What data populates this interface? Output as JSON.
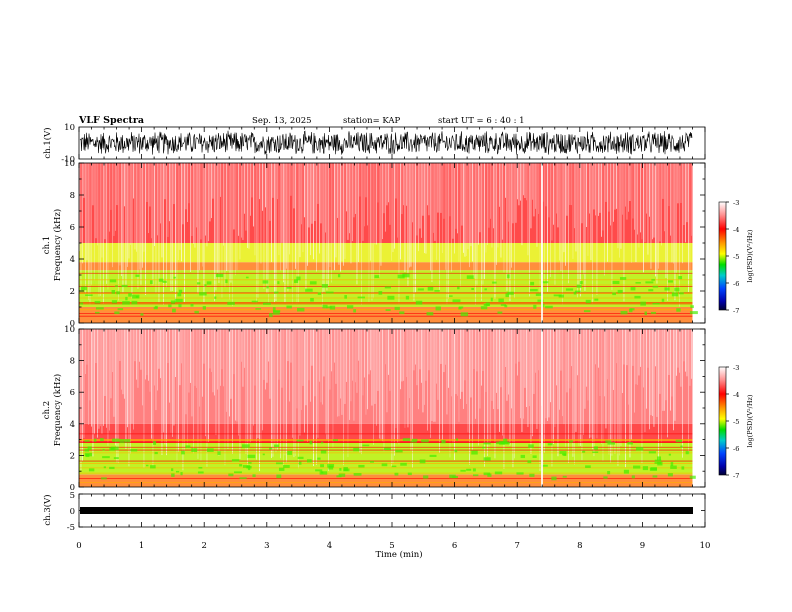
{
  "header": {
    "title": "VLF Spectra",
    "date": "Sep. 13, 2025",
    "station": "station= KAP",
    "start_ut": "start  UT =   6 : 40 : 1"
  },
  "chart_data": [
    {
      "type": "line",
      "name": "ch1-waveform",
      "ylabel": "ch.1(V)",
      "ylim": [
        -10,
        10
      ],
      "yticks": [
        "10",
        "-10"
      ],
      "xlim": [
        0,
        10
      ],
      "description_of_signal": "dense broadband waveform spanning roughly -8 to 8 V over 0 to 9.8 min"
    },
    {
      "type": "heatmap",
      "name": "ch1-spectrogram",
      "ylabel": "Frequency (kHz)",
      "channel_label": "ch.1",
      "ylim": [
        0,
        10
      ],
      "yticks": [
        "0",
        "2",
        "4",
        "6",
        "8",
        "10"
      ],
      "xlim": [
        0,
        10
      ],
      "data_end_min": 9.8,
      "colorbar": {
        "label": "log(PSD)(V²/Hz)",
        "range": [
          -7,
          -3
        ],
        "ticks": [
          "-3",
          "-4",
          "-5",
          "-6",
          "-7"
        ]
      },
      "bands": [
        {
          "from_khz": 0.0,
          "to_khz": 1.0,
          "level": "orange"
        },
        {
          "from_khz": 1.0,
          "to_khz": 3.3,
          "level": "green-yellow"
        },
        {
          "from_khz": 3.3,
          "to_khz": 3.8,
          "level": "orange"
        },
        {
          "from_khz": 3.8,
          "to_khz": 5.0,
          "level": "yellow-green"
        },
        {
          "from_khz": 5.0,
          "to_khz": 10.0,
          "level": "red"
        }
      ]
    },
    {
      "type": "heatmap",
      "name": "ch2-spectrogram",
      "ylabel": "Frequency (kHz)",
      "channel_label": "ch.2",
      "ylim": [
        0,
        10
      ],
      "yticks": [
        "0",
        "2",
        "4",
        "6",
        "8",
        "10"
      ],
      "xlim": [
        0,
        10
      ],
      "data_end_min": 9.8,
      "colorbar": {
        "label": "log(PSD)(V²/Hz)",
        "range": [
          -7,
          -3
        ],
        "ticks": [
          "-3",
          "-4",
          "-5",
          "-6",
          "-7"
        ]
      },
      "bands": [
        {
          "from_khz": 0.0,
          "to_khz": 0.8,
          "level": "orange"
        },
        {
          "from_khz": 0.8,
          "to_khz": 2.8,
          "level": "green-yellow"
        },
        {
          "from_khz": 2.8,
          "to_khz": 4.0,
          "level": "red"
        },
        {
          "from_khz": 4.0,
          "to_khz": 10.0,
          "level": "light-red"
        }
      ]
    },
    {
      "type": "line",
      "name": "ch3-waveform",
      "ylabel": "ch.3(V)",
      "ylim": [
        -5,
        5
      ],
      "yticks": [
        "5",
        "0",
        "-5"
      ],
      "xlim": [
        0,
        10
      ],
      "xticks": [
        "0",
        "1",
        "2",
        "3",
        "4",
        "5",
        "6",
        "7",
        "8",
        "9",
        "10"
      ],
      "xlabel": "Time (min)",
      "description_of_signal": "narrow band near -1 V across 0 to 9.8 min"
    }
  ]
}
